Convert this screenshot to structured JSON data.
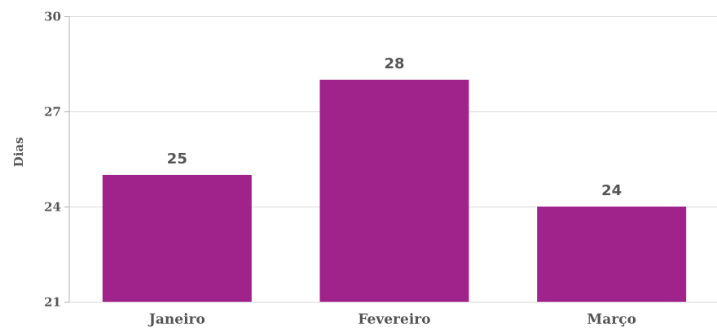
{
  "chart_data": {
    "type": "bar",
    "categories": [
      "Janeiro",
      "Fevereiro",
      "Março"
    ],
    "values": [
      25,
      28,
      24
    ],
    "data_labels": [
      "25",
      "28",
      "24"
    ],
    "xlabel": "",
    "ylabel": "Dias",
    "ylim": [
      21,
      30
    ],
    "yticks": [
      21,
      24,
      27,
      30
    ],
    "ytick_labels": [
      "21",
      "24",
      "27",
      "30"
    ],
    "grid": true,
    "legend": "none",
    "colors": {
      "bar": "#a0238c",
      "text": "#555555",
      "grid": "#d9d9d9"
    }
  }
}
